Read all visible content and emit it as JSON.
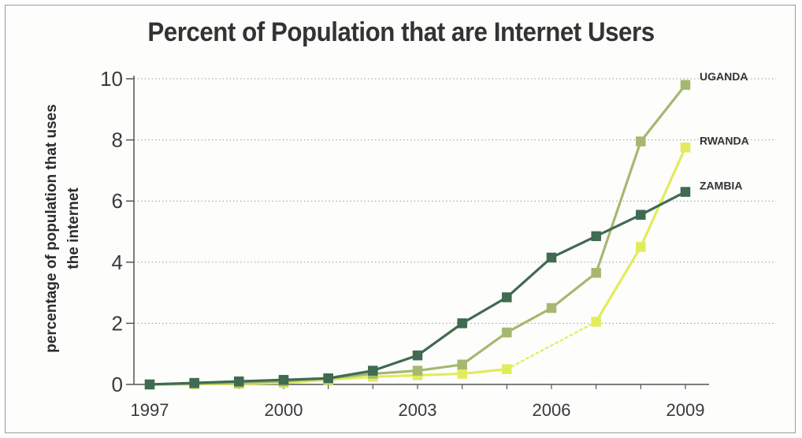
{
  "chart_data": {
    "type": "line",
    "title": "Percent of Population that are Internet Users",
    "ylabel": "percentage of population that uses the internet",
    "xlabel": "",
    "x": [
      1997,
      1998,
      1999,
      2000,
      2001,
      2002,
      2003,
      2004,
      2005,
      2006,
      2007,
      2008,
      2009
    ],
    "xticks": [
      "1997",
      "2000",
      "2003",
      "2006",
      "2009"
    ],
    "ylim": [
      0,
      10
    ],
    "yticks": [
      "0",
      "2",
      "4",
      "6",
      "8",
      "10"
    ],
    "grid": "horizontal dotted",
    "series": [
      {
        "name": "ZAMBIA",
        "color": "#3f6b50",
        "values": [
          0,
          0.05,
          0.1,
          0.15,
          0.2,
          0.45,
          0.95,
          2.0,
          2.85,
          4.15,
          4.85,
          5.55,
          6.3
        ]
      },
      {
        "name": "UGANDA",
        "color": "#a6b870",
        "values": [
          0,
          0.02,
          0.05,
          0.1,
          0.2,
          0.35,
          0.45,
          0.65,
          1.7,
          2.5,
          3.65,
          7.95,
          9.8
        ]
      },
      {
        "name": "RWANDA",
        "color": "#e2ec5a",
        "values": [
          0,
          0.01,
          0.02,
          0.05,
          0.15,
          0.25,
          0.3,
          0.35,
          0.5,
          null,
          2.05,
          4.5,
          7.75
        ]
      }
    ]
  }
}
